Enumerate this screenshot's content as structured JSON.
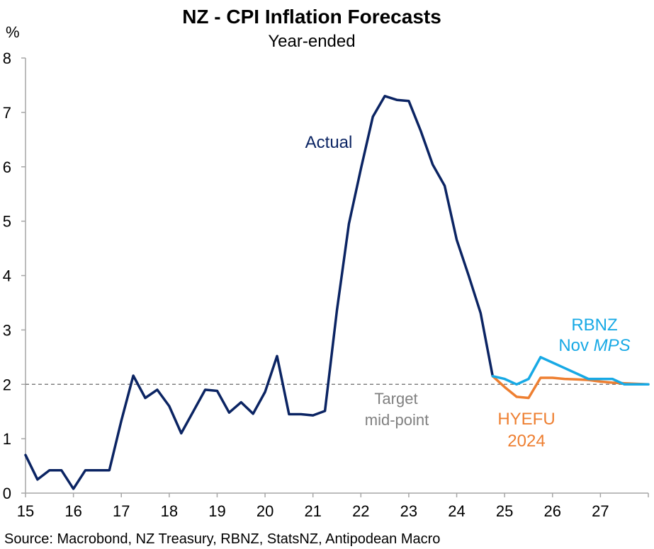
{
  "chart_data": {
    "type": "line",
    "title": "NZ - CPI Inflation Forecasts",
    "subtitle": "Year-ended",
    "ylabel": "%",
    "xlabel": "",
    "ylim": [
      0,
      8
    ],
    "xlim": [
      15,
      28
    ],
    "y_ticks": [
      "0",
      "1",
      "2",
      "3",
      "4",
      "5",
      "6",
      "7",
      "8"
    ],
    "x_ticks": [
      "15",
      "16",
      "17",
      "18",
      "19",
      "20",
      "21",
      "22",
      "23",
      "24",
      "25",
      "26",
      "27"
    ],
    "grid": false,
    "target": {
      "value": 2,
      "label_line1": "Target",
      "label_line2": "mid-point",
      "color": "#808080"
    },
    "series": [
      {
        "name": "Actual",
        "color": "#0b2463",
        "labels": [
          "Actual"
        ],
        "x": [
          15.0,
          15.25,
          15.5,
          15.75,
          16.0,
          16.25,
          16.5,
          16.75,
          17.0,
          17.25,
          17.5,
          17.75,
          18.0,
          18.25,
          18.5,
          18.75,
          19.0,
          19.25,
          19.5,
          19.75,
          20.0,
          20.25,
          20.5,
          20.75,
          21.0,
          21.25,
          21.5,
          21.75,
          22.0,
          22.25,
          22.5,
          22.75,
          23.0,
          23.25,
          23.5,
          23.75,
          24.0,
          24.25,
          24.5,
          24.75
        ],
        "values": [
          0.7,
          0.25,
          0.42,
          0.42,
          0.08,
          0.42,
          0.42,
          0.42,
          1.33,
          2.16,
          1.75,
          1.9,
          1.6,
          1.1,
          1.5,
          1.9,
          1.88,
          1.48,
          1.67,
          1.46,
          1.86,
          2.52,
          1.45,
          1.45,
          1.43,
          1.51,
          3.36,
          4.95,
          5.96,
          6.92,
          7.3,
          7.23,
          7.21,
          6.66,
          6.04,
          5.65,
          4.66,
          4.0,
          3.31,
          2.15
        ]
      },
      {
        "name": "RBNZ Nov MPS",
        "color": "#17a9e5",
        "labels": [
          "RBNZ",
          "Nov ",
          "MPS"
        ],
        "x": [
          24.75,
          25.0,
          25.25,
          25.5,
          25.75,
          26.0,
          26.25,
          26.5,
          26.75,
          27.0,
          27.25,
          27.5,
          27.75,
          28.0
        ],
        "values": [
          2.15,
          2.1,
          2.0,
          2.1,
          2.5,
          2.4,
          2.3,
          2.2,
          2.1,
          2.1,
          2.1,
          2.0,
          2.0,
          2.0
        ]
      },
      {
        "name": "HYEFU 2024",
        "color": "#ee7f31",
        "labels": [
          "HYEFU",
          "2024"
        ],
        "x": [
          24.75,
          25.0,
          25.25,
          25.5,
          25.75,
          26.0,
          26.25,
          26.5,
          26.75,
          27.0,
          27.25,
          27.5,
          27.75,
          28.0
        ],
        "values": [
          2.15,
          1.95,
          1.77,
          1.75,
          2.12,
          2.12,
          2.1,
          2.09,
          2.08,
          2.05,
          2.03,
          2.02,
          2.01,
          2.0
        ]
      }
    ],
    "source": "Source: Macrobond, NZ Treasury, RBNZ, StatsNZ, Antipodean Macro"
  }
}
